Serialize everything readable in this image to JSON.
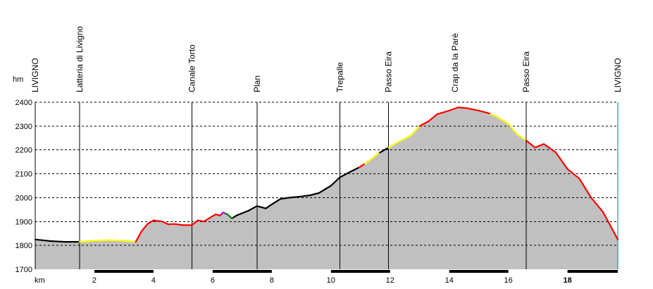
{
  "chart_data": {
    "type": "area",
    "ylabel": "hm",
    "xlabel": "km",
    "ylim": [
      1700,
      2400
    ],
    "xlim": [
      0,
      19.7
    ],
    "y_ticks": [
      "1700",
      "1800",
      "1900",
      "2000",
      "2100",
      "2200",
      "2300",
      "2400"
    ],
    "x_ticks": [
      {
        "value": 2,
        "label": "2",
        "bold": false
      },
      {
        "value": 4,
        "label": "4",
        "bold": false
      },
      {
        "value": 6,
        "label": "6",
        "bold": false
      },
      {
        "value": 8,
        "label": "8",
        "bold": false
      },
      {
        "value": 10,
        "label": "10",
        "bold": false
      },
      {
        "value": 12,
        "label": "12",
        "bold": false
      },
      {
        "value": 14,
        "label": "14",
        "bold": false
      },
      {
        "value": 16,
        "label": "16",
        "bold": false
      },
      {
        "value": 18,
        "label": "18",
        "bold": true
      }
    ],
    "grid": "horizontal-dashed",
    "stations": [
      {
        "name": "LIVIGNO",
        "km": 0.0,
        "line": false
      },
      {
        "name": "Latteria di Livigno",
        "km": 1.5,
        "line": true
      },
      {
        "name": "Canale Torto",
        "km": 5.3,
        "line": true
      },
      {
        "name": "Plan",
        "km": 7.5,
        "line": true
      },
      {
        "name": "Trepalle",
        "km": 10.3,
        "line": true
      },
      {
        "name": "Passo Eira",
        "km": 11.95,
        "line": true
      },
      {
        "name": "Crap da la Parè",
        "km": 14.2,
        "line": false
      },
      {
        "name": "Passo Eira",
        "km": 16.6,
        "line": true
      },
      {
        "name": "LIVIGNO",
        "km": 19.7,
        "line": true
      }
    ],
    "profile": {
      "x": [
        0,
        0.5,
        1.0,
        1.5,
        2.0,
        2.5,
        3.0,
        3.4,
        3.6,
        3.8,
        4.0,
        4.3,
        4.5,
        4.7,
        5.0,
        5.3,
        5.5,
        5.7,
        5.9,
        6.1,
        6.25,
        6.35,
        6.5,
        6.65,
        6.8,
        7.0,
        7.2,
        7.5,
        7.8,
        8.0,
        8.3,
        8.6,
        9.0,
        9.3,
        9.6,
        10.0,
        10.3,
        10.6,
        11.0,
        11.3,
        11.6,
        11.95,
        12.3,
        12.7,
        13.0,
        13.3,
        13.6,
        14.0,
        14.3,
        14.6,
        15.0,
        15.3,
        15.6,
        16.0,
        16.3,
        16.6,
        16.9,
        17.2,
        17.6,
        18.0,
        18.4,
        18.8,
        19.2,
        19.7
      ],
      "y": [
        1825,
        1818,
        1815,
        1815,
        1820,
        1822,
        1820,
        1815,
        1860,
        1890,
        1905,
        1900,
        1888,
        1890,
        1885,
        1885,
        1905,
        1900,
        1915,
        1930,
        1925,
        1938,
        1930,
        1913,
        1925,
        1935,
        1945,
        1965,
        1955,
        1972,
        1995,
        2000,
        2005,
        2010,
        2020,
        2050,
        2085,
        2105,
        2130,
        2155,
        2185,
        2210,
        2235,
        2260,
        2300,
        2320,
        2350,
        2365,
        2378,
        2375,
        2365,
        2355,
        2340,
        2310,
        2265,
        2240,
        2210,
        2225,
        2190,
        2120,
        2080,
        2000,
        1940,
        1825
      ]
    },
    "segments": [
      {
        "from": 0,
        "to": 1.5,
        "color": "#000000"
      },
      {
        "from": 1.5,
        "to": 3.4,
        "color": "#ffff00"
      },
      {
        "from": 3.4,
        "to": 6.3,
        "color": "#ff0000"
      },
      {
        "from": 6.3,
        "to": 6.45,
        "color": "#a000ff"
      },
      {
        "from": 6.45,
        "to": 6.7,
        "color": "#008000"
      },
      {
        "from": 6.7,
        "to": 10.95,
        "color": "#000000"
      },
      {
        "from": 10.95,
        "to": 11.15,
        "color": "#ff0000"
      },
      {
        "from": 11.15,
        "to": 11.65,
        "color": "#ffff00"
      },
      {
        "from": 11.65,
        "to": 11.95,
        "color": "#000000"
      },
      {
        "from": 11.95,
        "to": 13.0,
        "color": "#ffff00"
      },
      {
        "from": 13.0,
        "to": 15.4,
        "color": "#ff0000"
      },
      {
        "from": 15.4,
        "to": 16.6,
        "color": "#ffff00"
      },
      {
        "from": 16.6,
        "to": 19.7,
        "color": "#ff0000"
      }
    ],
    "colors": {
      "fill": "#c0c0c0",
      "grid": "#000000",
      "station_line": "#000000",
      "scale_bar": "#000000"
    }
  }
}
